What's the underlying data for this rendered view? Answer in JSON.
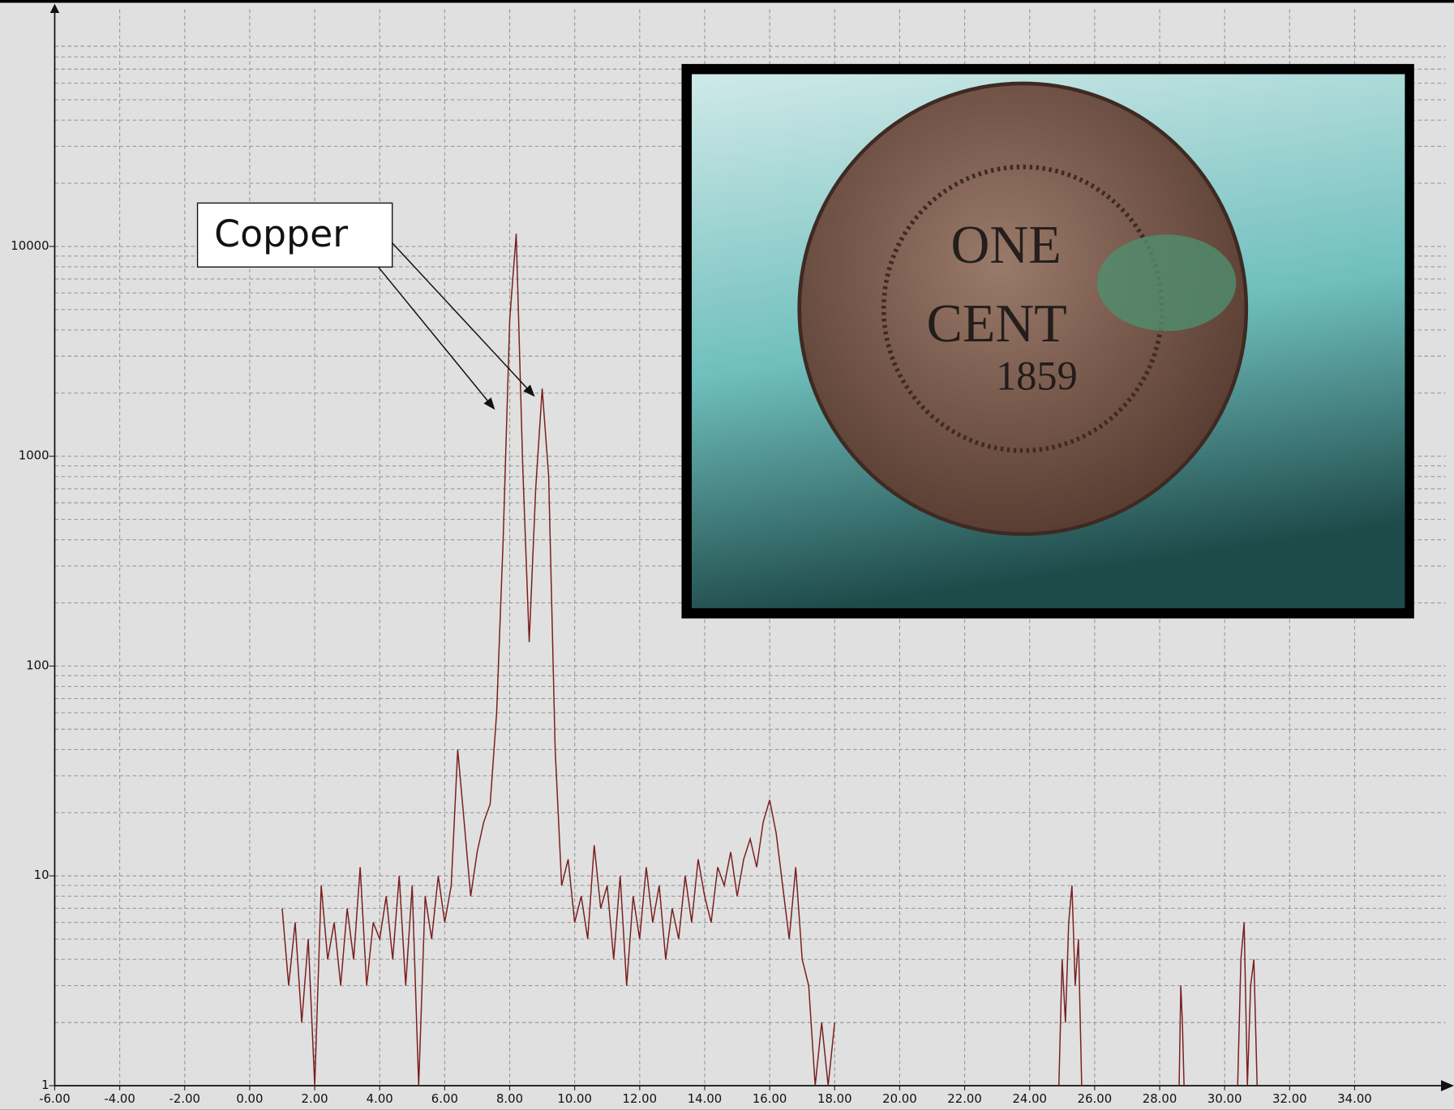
{
  "chart_data": {
    "type": "line",
    "color": "#7a1f1f",
    "log_y": true,
    "grid": true,
    "minor_grid": true,
    "x": [
      1.0,
      1.2,
      1.4,
      1.6,
      1.8,
      2.0,
      2.2,
      2.4,
      2.6,
      2.8,
      3.0,
      3.2,
      3.4,
      3.6,
      3.8,
      4.0,
      4.2,
      4.4,
      4.6,
      4.8,
      5.0,
      5.2,
      5.4,
      5.6,
      5.8,
      6.0,
      6.2,
      6.4,
      6.6,
      6.8,
      7.0,
      7.2,
      7.4,
      7.6,
      7.8,
      8.0,
      8.2,
      8.4,
      8.6,
      8.8,
      9.0,
      9.2,
      9.4,
      9.6,
      9.8,
      10.0,
      10.2,
      10.4,
      10.6,
      10.8,
      11.0,
      11.2,
      11.4,
      11.6,
      11.8,
      12.0,
      12.2,
      12.4,
      12.6,
      12.8,
      13.0,
      13.2,
      13.4,
      13.6,
      13.8,
      14.0,
      14.2,
      14.4,
      14.6,
      14.8,
      15.0,
      15.2,
      15.4,
      15.6,
      15.8,
      16.0,
      16.2,
      16.4,
      16.6,
      16.8,
      17.0,
      17.2,
      17.4,
      17.6,
      17.8,
      18.0,
      21.0,
      24.9,
      25.0,
      25.1,
      25.2,
      25.3,
      25.4,
      25.5,
      25.6,
      27.0,
      28.6,
      28.65,
      28.7,
      28.75,
      29.5,
      30.4,
      30.5,
      30.6,
      30.7,
      30.8,
      30.9,
      31.0
    ],
    "values": [
      7,
      3,
      6,
      2,
      5,
      1,
      9,
      4,
      6,
      3,
      7,
      4,
      11,
      3,
      6,
      5,
      8,
      4,
      10,
      3,
      9,
      1,
      8,
      5,
      10,
      6,
      9,
      40,
      18,
      8,
      13,
      18,
      22,
      60,
      400,
      4500,
      11500,
      900,
      130,
      700,
      2100,
      800,
      40,
      9,
      12,
      6,
      8,
      5,
      14,
      7,
      9,
      4,
      10,
      3,
      8,
      5,
      11,
      6,
      9,
      4,
      7,
      5,
      10,
      6,
      12,
      8,
      6,
      11,
      9,
      13,
      8,
      12,
      15,
      11,
      18,
      23,
      16,
      9,
      5,
      11,
      4,
      3,
      1,
      2,
      1,
      2,
      null,
      1,
      4,
      2,
      6,
      9,
      3,
      5,
      1,
      null,
      1,
      3,
      2,
      1,
      null,
      1,
      4,
      6,
      1,
      3,
      4,
      1
    ],
    "xlim": [
      -6,
      36.8
    ],
    "ylim": [
      1,
      135000
    ],
    "xticks": [
      {
        "value": -6,
        "label": "-6.00"
      },
      {
        "value": -4,
        "label": "-4.00"
      },
      {
        "value": -2,
        "label": "-2.00"
      },
      {
        "value": 0,
        "label": "0.00"
      },
      {
        "value": 2,
        "label": "2.00"
      },
      {
        "value": 4,
        "label": "4.00"
      },
      {
        "value": 6,
        "label": "6.00"
      },
      {
        "value": 8,
        "label": "8.00"
      },
      {
        "value": 10,
        "label": "10.00"
      },
      {
        "value": 12,
        "label": "12.00"
      },
      {
        "value": 14,
        "label": "14.00"
      },
      {
        "value": 16,
        "label": "16.00"
      },
      {
        "value": 18,
        "label": "18.00"
      },
      {
        "value": 20,
        "label": "20.00"
      },
      {
        "value": 22,
        "label": "22.00"
      },
      {
        "value": 24,
        "label": "24.00"
      },
      {
        "value": 26,
        "label": "26.00"
      },
      {
        "value": 28,
        "label": "28.00"
      },
      {
        "value": 30,
        "label": "30.00"
      },
      {
        "value": 32,
        "label": "32.00"
      },
      {
        "value": 34,
        "label": "34.00"
      }
    ],
    "yticks": [
      1,
      10,
      100,
      1000,
      10000
    ],
    "annotations": [
      {
        "text": "Copper"
      }
    ],
    "inset_texts": [
      "ONE",
      "CENT",
      "1859"
    ]
  }
}
